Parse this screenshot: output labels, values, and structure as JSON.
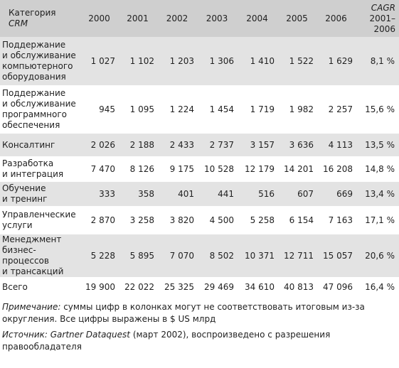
{
  "table": {
    "header": {
      "category_line1": "Категория",
      "category_line2": "CRM",
      "years": [
        "2000",
        "2001",
        "2002",
        "2003",
        "2004",
        "2005",
        "2006"
      ],
      "cagr_line1": "CAGR",
      "cagr_line2": "2001–",
      "cagr_line3": "2006"
    },
    "rows": [
      {
        "label_lines": [
          "Поддержание",
          "и обслуживание",
          "компьютерного",
          "оборудования"
        ],
        "values": [
          "1 027",
          "1 102",
          "1 203",
          "1 306",
          "1 410",
          "1 522",
          "1 629"
        ],
        "cagr": "8,1 %"
      },
      {
        "label_lines": [
          "Поддержание",
          "и обслуживание",
          "программного",
          "обеспечения"
        ],
        "values": [
          "945",
          "1 095",
          "1 224",
          "1 454",
          "1 719",
          "1 982",
          "2 257"
        ],
        "cagr": "15,6 %"
      },
      {
        "label_lines": [
          "Консалтинг"
        ],
        "values": [
          "2 026",
          "2 188",
          "2 433",
          "2 737",
          "3 157",
          "3 636",
          "4 113"
        ],
        "cagr": "13,5 %"
      },
      {
        "label_lines": [
          "Разработка",
          "и интеграция"
        ],
        "values": [
          "7 470",
          "8 126",
          "9 175",
          "10 528",
          "12 179",
          "14 201",
          "16 208"
        ],
        "cagr": "14,8 %"
      },
      {
        "label_lines": [
          "Обучение",
          "и тренинг"
        ],
        "values": [
          "333",
          "358",
          "401",
          "441",
          "516",
          "607",
          "669"
        ],
        "cagr": "13,4 %"
      },
      {
        "label_lines": [
          "Управленческие",
          "услуги"
        ],
        "values": [
          "2 870",
          "3 258",
          "3 820",
          "4 500",
          "5 258",
          "6 154",
          "7 163"
        ],
        "cagr": "17,1 %"
      },
      {
        "label_lines": [
          "Менеджмент",
          "бизнес-",
          "процессов",
          "и трансакций"
        ],
        "values": [
          "5 228",
          "5 895",
          "7 070",
          "8 502",
          "10 371",
          "12 711",
          "15 057"
        ],
        "cagr": "20,6 %"
      },
      {
        "label_lines": [
          "Всего"
        ],
        "values": [
          "19 900",
          "22 022",
          "25 325",
          "29 469",
          "34 610",
          "40 813",
          "47 096"
        ],
        "cagr": "16,4 %"
      }
    ]
  },
  "notes": {
    "note_label": "Примечание:",
    "note_text": " суммы цифр в колонках могут не соответствовать итоговым из-за округления. Все цифры выражены в $ US млрд",
    "source_label": "Источник: Gartner Dataquest",
    "source_text": " (март 2002), воспроизведено с разрешения правообладателя"
  }
}
